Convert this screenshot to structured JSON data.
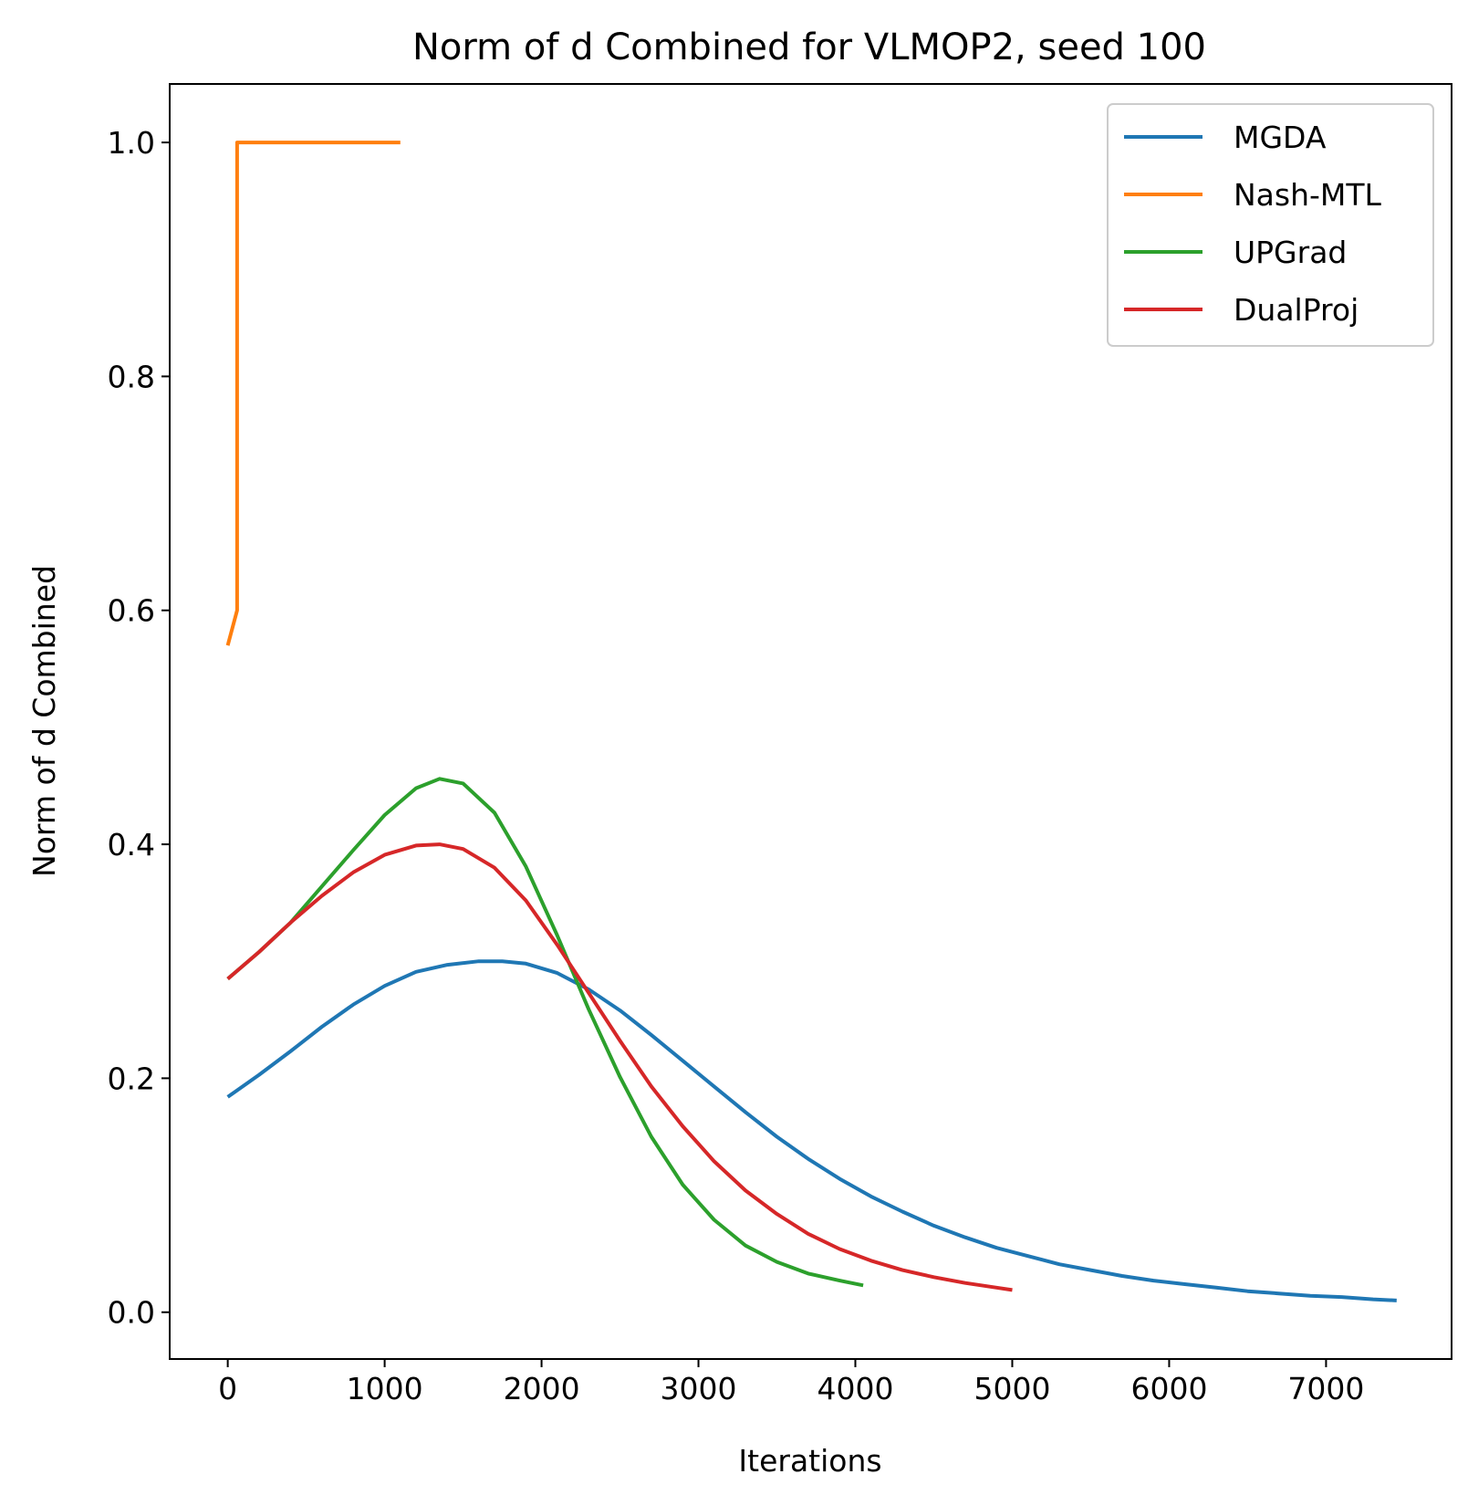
{
  "chart_data": {
    "type": "line",
    "title": "Norm of d Combined for VLMOP2, seed 100",
    "xlabel": "Iterations",
    "ylabel": "Norm of d Combined",
    "xlim": [
      -370,
      7800
    ],
    "ylim": [
      -0.04,
      1.05
    ],
    "xticks": [
      0,
      1000,
      2000,
      3000,
      4000,
      5000,
      6000,
      7000
    ],
    "yticks": [
      0.0,
      0.2,
      0.4,
      0.6,
      0.8,
      1.0
    ],
    "xtick_labels": [
      "0",
      "1000",
      "2000",
      "3000",
      "4000",
      "5000",
      "6000",
      "7000"
    ],
    "ytick_labels": [
      "0.0",
      "0.2",
      "0.4",
      "0.6",
      "0.8",
      "1.0"
    ],
    "grid": false,
    "legend_position": "top-right",
    "series": [
      {
        "name": "MGDA",
        "color": "#1f77b4",
        "x": [
          0,
          200,
          400,
          600,
          800,
          1000,
          1200,
          1400,
          1600,
          1750,
          1900,
          2100,
          2300,
          2500,
          2700,
          2900,
          3100,
          3300,
          3500,
          3700,
          3900,
          4100,
          4300,
          4500,
          4700,
          4900,
          5100,
          5300,
          5500,
          5700,
          5900,
          6100,
          6300,
          6500,
          6700,
          6900,
          7100,
          7300,
          7450
        ],
        "y": [
          0.184,
          0.203,
          0.223,
          0.244,
          0.263,
          0.279,
          0.291,
          0.297,
          0.3,
          0.3,
          0.298,
          0.29,
          0.276,
          0.258,
          0.237,
          0.215,
          0.193,
          0.171,
          0.15,
          0.131,
          0.114,
          0.099,
          0.086,
          0.074,
          0.064,
          0.055,
          0.048,
          0.041,
          0.036,
          0.031,
          0.027,
          0.024,
          0.021,
          0.018,
          0.016,
          0.014,
          0.013,
          0.011,
          0.01
        ]
      },
      {
        "name": "Nash-MTL",
        "color": "#ff7f0e",
        "x": [
          0,
          60,
          60,
          1100
        ],
        "y": [
          0.57,
          0.6,
          1.0,
          1.0
        ]
      },
      {
        "name": "UPGrad",
        "color": "#2ca02c",
        "x": [
          0,
          200,
          400,
          600,
          800,
          1000,
          1200,
          1350,
          1500,
          1700,
          1900,
          2100,
          2300,
          2500,
          2700,
          2900,
          3100,
          3300,
          3500,
          3700,
          3900,
          4050
        ],
        "y": [
          0.285,
          0.308,
          0.333,
          0.364,
          0.395,
          0.425,
          0.448,
          0.456,
          0.452,
          0.427,
          0.381,
          0.322,
          0.259,
          0.201,
          0.15,
          0.109,
          0.079,
          0.057,
          0.043,
          0.033,
          0.027,
          0.023
        ]
      },
      {
        "name": "DualProj",
        "color": "#d62728",
        "x": [
          0,
          200,
          400,
          600,
          800,
          1000,
          1200,
          1350,
          1500,
          1700,
          1900,
          2100,
          2300,
          2500,
          2700,
          2900,
          3100,
          3300,
          3500,
          3700,
          3900,
          4100,
          4300,
          4500,
          4700,
          4900,
          5000
        ],
        "y": [
          0.285,
          0.308,
          0.333,
          0.356,
          0.376,
          0.391,
          0.399,
          0.4,
          0.396,
          0.38,
          0.352,
          0.314,
          0.273,
          0.232,
          0.193,
          0.159,
          0.129,
          0.104,
          0.084,
          0.067,
          0.054,
          0.044,
          0.036,
          0.03,
          0.025,
          0.021,
          0.019
        ]
      }
    ]
  }
}
